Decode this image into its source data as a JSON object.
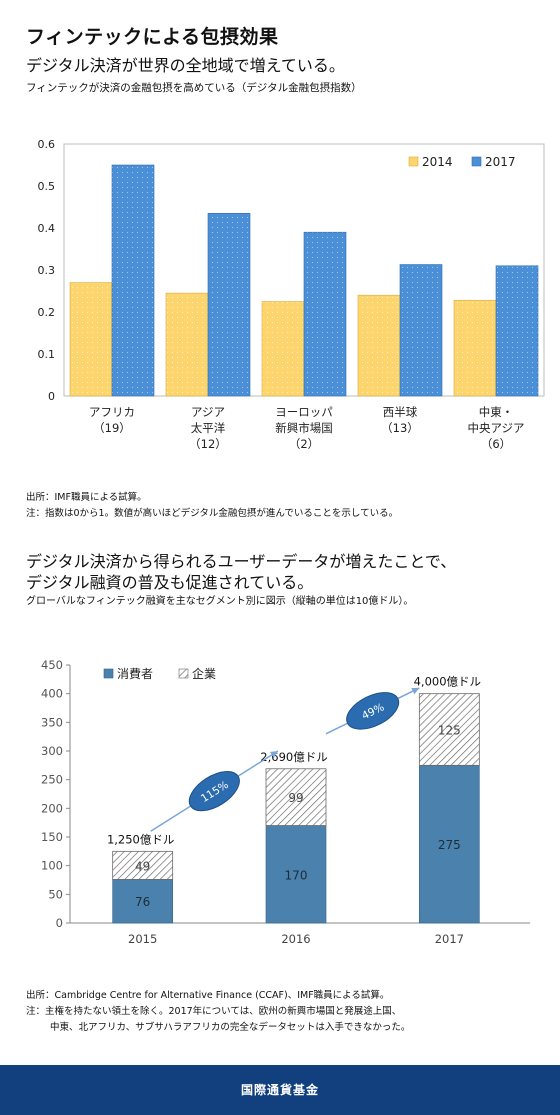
{
  "header": {
    "title": "フィンテックによる包摂効果",
    "subtitle": "デジタル決済が世界の全地域で増えている。",
    "caption": "フィンテックが決済の金融包摂を高めている（デジタル金融包摂指数）"
  },
  "notes1": {
    "source": "出所：IMF職員による試算。",
    "note": "注：指数は0から1。数値が高いほどデジタル金融包摂が進んでいることを示している。"
  },
  "section2": {
    "line1": "デジタル決済から得られるユーザーデータが増えたことで、",
    "line2": "デジタル融資の普及も促進されている。",
    "caption": "グローバルなフィンテック融資を主なセグメント別に図示（縦軸の単位は10億ドル）。"
  },
  "notes2": {
    "source": "出所：Cambridge Centre for Alternative Finance (CCAF)、IMF職員による試算。",
    "note1": "注：主権を持たない領土を除く。2017年については、欧州の新興市場国と発展途上国、",
    "note2": "中東、北アフリカ、サブサハラアフリカの完全なデータセットは入手できなかった。"
  },
  "footer": {
    "text": "国際通貨基金"
  },
  "colors": {
    "bar_2014": "#fcd56e",
    "bar_2017": "#4b8fd6",
    "consumer": "#4a82ad",
    "footer": "#12407e",
    "growth_oval": "#2b6cb0"
  },
  "chart_data": [
    {
      "type": "bar",
      "categories": [
        [
          "アフリカ",
          "（19）"
        ],
        [
          "アジア",
          "太平洋",
          "（12）"
        ],
        [
          "ヨーロッパ",
          "新興市場国",
          "（2）"
        ],
        [
          "西半球",
          "（13）"
        ],
        [
          "中東・",
          "中央アジア",
          "（6）"
        ]
      ],
      "series": [
        {
          "name": "2014",
          "values": [
            0.27,
            0.245,
            0.225,
            0.24,
            0.228
          ]
        },
        {
          "name": "2017",
          "values": [
            0.55,
            0.435,
            0.39,
            0.313,
            0.31
          ]
        }
      ],
      "ylim": [
        0,
        0.6
      ],
      "yticks": [
        "0",
        "0.1",
        "0.2",
        "0.3",
        "0.4",
        "0.5",
        "0.6"
      ],
      "legend": "top-right",
      "grid": false
    },
    {
      "type": "bar",
      "stacked": true,
      "categories": [
        "2015",
        "2016",
        "2017"
      ],
      "series": [
        {
          "name": "消費者",
          "values": [
            76,
            170,
            275
          ]
        },
        {
          "name": "企業",
          "values": [
            49,
            99,
            125
          ]
        }
      ],
      "totals": [
        "1,250億ドル",
        "2,690億ドル",
        "4,000億ドル"
      ],
      "growth": [
        "115%",
        "49%"
      ],
      "ylim": [
        0,
        450
      ],
      "yticks": [
        "0",
        "50",
        "100",
        "150",
        "200",
        "250",
        "300",
        "350",
        "400",
        "450"
      ],
      "legend": "top-left",
      "grid": false
    }
  ]
}
